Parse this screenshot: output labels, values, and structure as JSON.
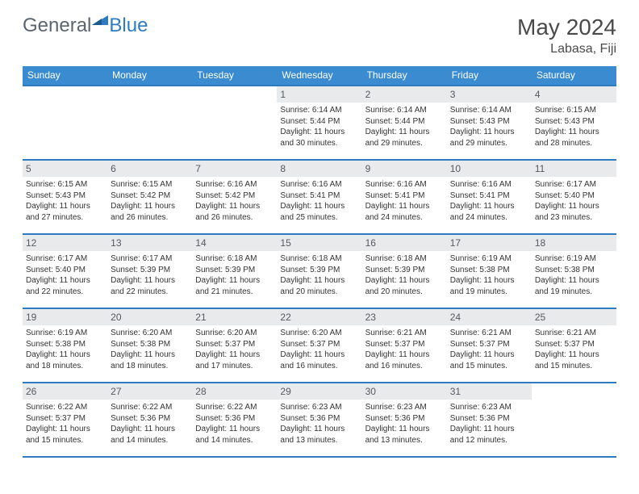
{
  "brand": {
    "part1": "General",
    "part2": "Blue"
  },
  "title": "May 2024",
  "location": "Labasa, Fiji",
  "colors": {
    "header_bg": "#3a8bd0",
    "border": "#2f7bbf",
    "daynum_bg": "#e8eaec",
    "text": "#333333",
    "muted": "#5a6570"
  },
  "daysOfWeek": [
    "Sunday",
    "Monday",
    "Tuesday",
    "Wednesday",
    "Thursday",
    "Friday",
    "Saturday"
  ],
  "weeks": [
    [
      {
        "n": "",
        "empty": true
      },
      {
        "n": "",
        "empty": true
      },
      {
        "n": "",
        "empty": true
      },
      {
        "n": "1",
        "sunrise": "Sunrise: 6:14 AM",
        "sunset": "Sunset: 5:44 PM",
        "d1": "Daylight: 11 hours",
        "d2": "and 30 minutes."
      },
      {
        "n": "2",
        "sunrise": "Sunrise: 6:14 AM",
        "sunset": "Sunset: 5:44 PM",
        "d1": "Daylight: 11 hours",
        "d2": "and 29 minutes."
      },
      {
        "n": "3",
        "sunrise": "Sunrise: 6:14 AM",
        "sunset": "Sunset: 5:43 PM",
        "d1": "Daylight: 11 hours",
        "d2": "and 29 minutes."
      },
      {
        "n": "4",
        "sunrise": "Sunrise: 6:15 AM",
        "sunset": "Sunset: 5:43 PM",
        "d1": "Daylight: 11 hours",
        "d2": "and 28 minutes."
      }
    ],
    [
      {
        "n": "5",
        "sunrise": "Sunrise: 6:15 AM",
        "sunset": "Sunset: 5:43 PM",
        "d1": "Daylight: 11 hours",
        "d2": "and 27 minutes."
      },
      {
        "n": "6",
        "sunrise": "Sunrise: 6:15 AM",
        "sunset": "Sunset: 5:42 PM",
        "d1": "Daylight: 11 hours",
        "d2": "and 26 minutes."
      },
      {
        "n": "7",
        "sunrise": "Sunrise: 6:16 AM",
        "sunset": "Sunset: 5:42 PM",
        "d1": "Daylight: 11 hours",
        "d2": "and 26 minutes."
      },
      {
        "n": "8",
        "sunrise": "Sunrise: 6:16 AM",
        "sunset": "Sunset: 5:41 PM",
        "d1": "Daylight: 11 hours",
        "d2": "and 25 minutes."
      },
      {
        "n": "9",
        "sunrise": "Sunrise: 6:16 AM",
        "sunset": "Sunset: 5:41 PM",
        "d1": "Daylight: 11 hours",
        "d2": "and 24 minutes."
      },
      {
        "n": "10",
        "sunrise": "Sunrise: 6:16 AM",
        "sunset": "Sunset: 5:41 PM",
        "d1": "Daylight: 11 hours",
        "d2": "and 24 minutes."
      },
      {
        "n": "11",
        "sunrise": "Sunrise: 6:17 AM",
        "sunset": "Sunset: 5:40 PM",
        "d1": "Daylight: 11 hours",
        "d2": "and 23 minutes."
      }
    ],
    [
      {
        "n": "12",
        "sunrise": "Sunrise: 6:17 AM",
        "sunset": "Sunset: 5:40 PM",
        "d1": "Daylight: 11 hours",
        "d2": "and 22 minutes."
      },
      {
        "n": "13",
        "sunrise": "Sunrise: 6:17 AM",
        "sunset": "Sunset: 5:39 PM",
        "d1": "Daylight: 11 hours",
        "d2": "and 22 minutes."
      },
      {
        "n": "14",
        "sunrise": "Sunrise: 6:18 AM",
        "sunset": "Sunset: 5:39 PM",
        "d1": "Daylight: 11 hours",
        "d2": "and 21 minutes."
      },
      {
        "n": "15",
        "sunrise": "Sunrise: 6:18 AM",
        "sunset": "Sunset: 5:39 PM",
        "d1": "Daylight: 11 hours",
        "d2": "and 20 minutes."
      },
      {
        "n": "16",
        "sunrise": "Sunrise: 6:18 AM",
        "sunset": "Sunset: 5:39 PM",
        "d1": "Daylight: 11 hours",
        "d2": "and 20 minutes."
      },
      {
        "n": "17",
        "sunrise": "Sunrise: 6:19 AM",
        "sunset": "Sunset: 5:38 PM",
        "d1": "Daylight: 11 hours",
        "d2": "and 19 minutes."
      },
      {
        "n": "18",
        "sunrise": "Sunrise: 6:19 AM",
        "sunset": "Sunset: 5:38 PM",
        "d1": "Daylight: 11 hours",
        "d2": "and 19 minutes."
      }
    ],
    [
      {
        "n": "19",
        "sunrise": "Sunrise: 6:19 AM",
        "sunset": "Sunset: 5:38 PM",
        "d1": "Daylight: 11 hours",
        "d2": "and 18 minutes."
      },
      {
        "n": "20",
        "sunrise": "Sunrise: 6:20 AM",
        "sunset": "Sunset: 5:38 PM",
        "d1": "Daylight: 11 hours",
        "d2": "and 18 minutes."
      },
      {
        "n": "21",
        "sunrise": "Sunrise: 6:20 AM",
        "sunset": "Sunset: 5:37 PM",
        "d1": "Daylight: 11 hours",
        "d2": "and 17 minutes."
      },
      {
        "n": "22",
        "sunrise": "Sunrise: 6:20 AM",
        "sunset": "Sunset: 5:37 PM",
        "d1": "Daylight: 11 hours",
        "d2": "and 16 minutes."
      },
      {
        "n": "23",
        "sunrise": "Sunrise: 6:21 AM",
        "sunset": "Sunset: 5:37 PM",
        "d1": "Daylight: 11 hours",
        "d2": "and 16 minutes."
      },
      {
        "n": "24",
        "sunrise": "Sunrise: 6:21 AM",
        "sunset": "Sunset: 5:37 PM",
        "d1": "Daylight: 11 hours",
        "d2": "and 15 minutes."
      },
      {
        "n": "25",
        "sunrise": "Sunrise: 6:21 AM",
        "sunset": "Sunset: 5:37 PM",
        "d1": "Daylight: 11 hours",
        "d2": "and 15 minutes."
      }
    ],
    [
      {
        "n": "26",
        "sunrise": "Sunrise: 6:22 AM",
        "sunset": "Sunset: 5:37 PM",
        "d1": "Daylight: 11 hours",
        "d2": "and 15 minutes."
      },
      {
        "n": "27",
        "sunrise": "Sunrise: 6:22 AM",
        "sunset": "Sunset: 5:36 PM",
        "d1": "Daylight: 11 hours",
        "d2": "and 14 minutes."
      },
      {
        "n": "28",
        "sunrise": "Sunrise: 6:22 AM",
        "sunset": "Sunset: 5:36 PM",
        "d1": "Daylight: 11 hours",
        "d2": "and 14 minutes."
      },
      {
        "n": "29",
        "sunrise": "Sunrise: 6:23 AM",
        "sunset": "Sunset: 5:36 PM",
        "d1": "Daylight: 11 hours",
        "d2": "and 13 minutes."
      },
      {
        "n": "30",
        "sunrise": "Sunrise: 6:23 AM",
        "sunset": "Sunset: 5:36 PM",
        "d1": "Daylight: 11 hours",
        "d2": "and 13 minutes."
      },
      {
        "n": "31",
        "sunrise": "Sunrise: 6:23 AM",
        "sunset": "Sunset: 5:36 PM",
        "d1": "Daylight: 11 hours",
        "d2": "and 12 minutes."
      },
      {
        "n": "",
        "empty": true
      }
    ]
  ]
}
